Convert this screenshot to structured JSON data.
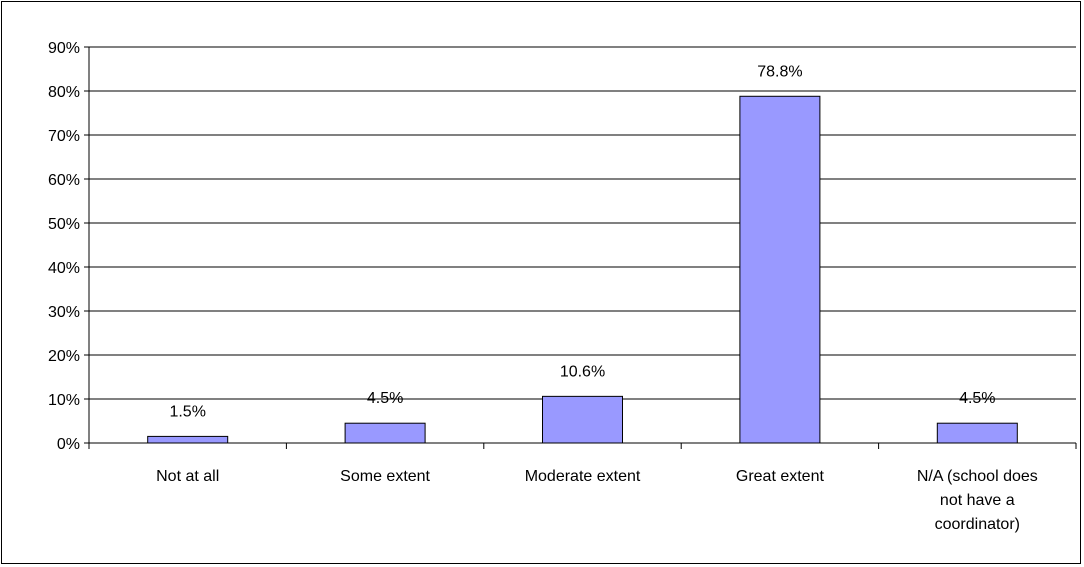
{
  "chart_data": {
    "type": "bar",
    "categories": [
      [
        "Not at all"
      ],
      [
        "Some extent"
      ],
      [
        "Moderate extent"
      ],
      [
        "Great extent"
      ],
      [
        "N/A  (school does",
        "not have a",
        "coordinator)"
      ]
    ],
    "values": [
      1.5,
      4.5,
      10.6,
      78.8,
      4.5
    ],
    "data_labels": [
      "1.5%",
      "4.5%",
      "10.6%",
      "78.8%",
      "4.5%"
    ],
    "ylim": [
      0,
      90
    ],
    "yticks": [
      0,
      10,
      20,
      30,
      40,
      50,
      60,
      70,
      80,
      90
    ],
    "ytick_labels": [
      "0%",
      "10%",
      "20%",
      "30%",
      "40%",
      "50%",
      "60%",
      "70%",
      "80%",
      "90%"
    ],
    "grid": true,
    "legend": "none",
    "title": "",
    "xlabel": "",
    "ylabel": "",
    "bar_color": "#9999ff",
    "bar_edge_color": "#000000"
  }
}
